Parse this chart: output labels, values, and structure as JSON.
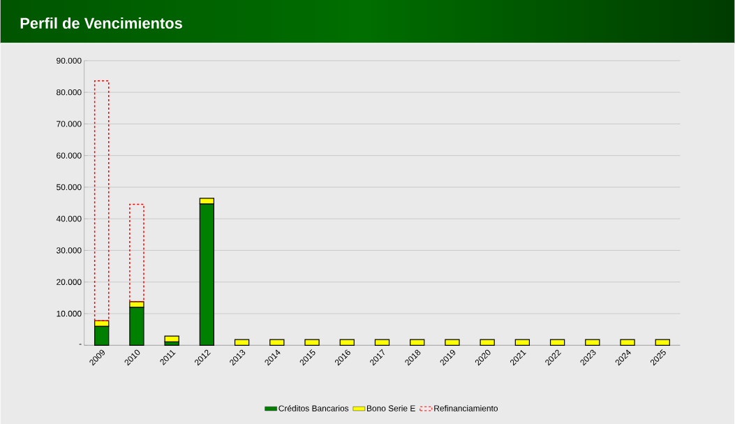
{
  "chart_data": {
    "type": "bar",
    "title": "Perfil de Vencimientos",
    "stacked": true,
    "categories": [
      "2009",
      "2010",
      "2011",
      "2012",
      "2013",
      "2014",
      "2015",
      "2016",
      "2017",
      "2018",
      "2019",
      "2020",
      "2021",
      "2022",
      "2023",
      "2024",
      "2025"
    ],
    "series": [
      {
        "name": "Créditos Bancarios",
        "color": "#008000",
        "values": [
          6000,
          12000,
          1100,
          44700,
          null,
          null,
          null,
          null,
          null,
          null,
          null,
          null,
          null,
          null,
          null,
          null,
          null
        ]
      },
      {
        "name": "Bono Serie E",
        "color": "#ffff00",
        "values": [
          1800,
          1800,
          1800,
          1800,
          1800,
          1800,
          1800,
          1800,
          1800,
          1800,
          1800,
          1800,
          1800,
          1800,
          1800,
          1800,
          1800
        ]
      },
      {
        "name": "Refinanciamiento",
        "color": "#ff0000",
        "line_style": "dashed",
        "values": [
          75800,
          30800,
          null,
          null,
          null,
          null,
          null,
          null,
          null,
          null,
          null,
          null,
          null,
          null,
          null,
          null,
          null
        ]
      }
    ],
    "ylim": [
      0,
      90000
    ],
    "yticks": [
      {
        "value": 0,
        "label": "-"
      },
      {
        "value": 10000,
        "label": "10.000"
      },
      {
        "value": 20000,
        "label": "20.000"
      },
      {
        "value": 30000,
        "label": "30.000"
      },
      {
        "value": 40000,
        "label": "40.000"
      },
      {
        "value": 50000,
        "label": "50.000"
      },
      {
        "value": 60000,
        "label": "60.000"
      },
      {
        "value": 70000,
        "label": "70.000"
      },
      {
        "value": 80000,
        "label": "80.000"
      },
      {
        "value": 90000,
        "label": "90.000"
      }
    ],
    "grid": "y",
    "legend": "bottom"
  }
}
